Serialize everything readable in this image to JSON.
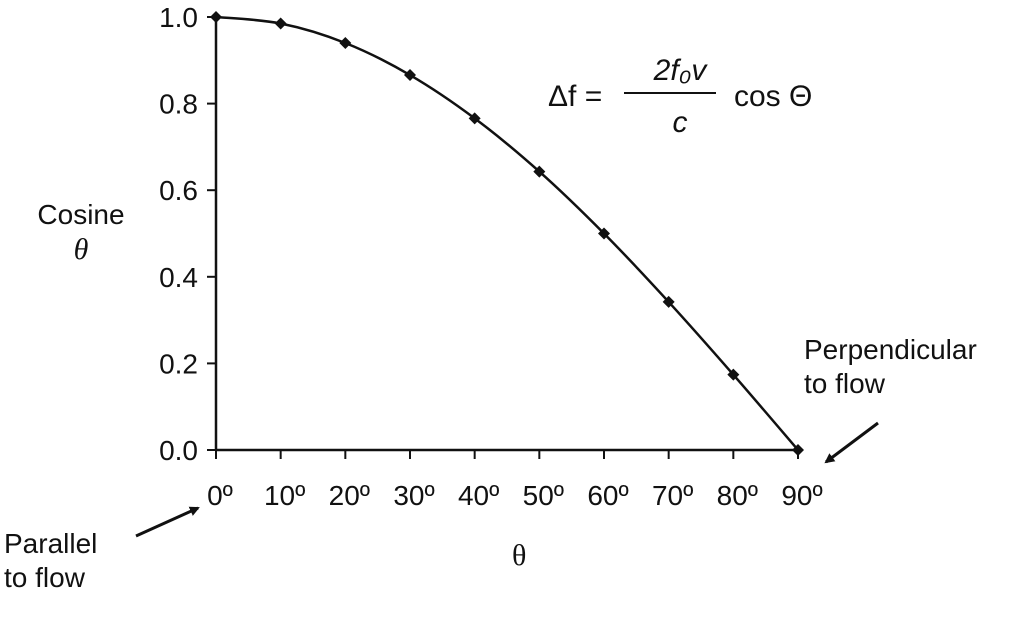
{
  "chart_data": {
    "type": "line",
    "x": [
      0,
      10,
      20,
      30,
      40,
      50,
      60,
      70,
      80,
      90
    ],
    "xticklabels": [
      "0º",
      "10º",
      "20º",
      "30º",
      "40º",
      "50º",
      "60º",
      "70º",
      "80º",
      "90º"
    ],
    "values": [
      1.0,
      0.985,
      0.94,
      0.866,
      0.766,
      0.643,
      0.5,
      0.342,
      0.174,
      0.0
    ],
    "yticklabels": [
      "0.0",
      "0.2",
      "0.4",
      "0.6",
      "0.8",
      "1.0"
    ],
    "yticks": [
      0.0,
      0.2,
      0.4,
      0.6,
      0.8,
      1.0
    ],
    "xlim": [
      0,
      90
    ],
    "ylim": [
      0,
      1.0
    ],
    "xlabel": "θ",
    "ylabel_line1": "Cosine",
    "ylabel_line2": "θ",
    "marker": "diamond",
    "grid": false,
    "line_color": "#111111",
    "annotations": {
      "parallel_line1": "Parallel",
      "parallel_line2": "to flow",
      "perpendicular_line1": "Perpendicular",
      "perpendicular_line2": "to flow"
    },
    "formula": {
      "lhs": "Δf =",
      "numerator": "2f₀v",
      "denominator": "c",
      "rhs": "cos Θ"
    }
  }
}
